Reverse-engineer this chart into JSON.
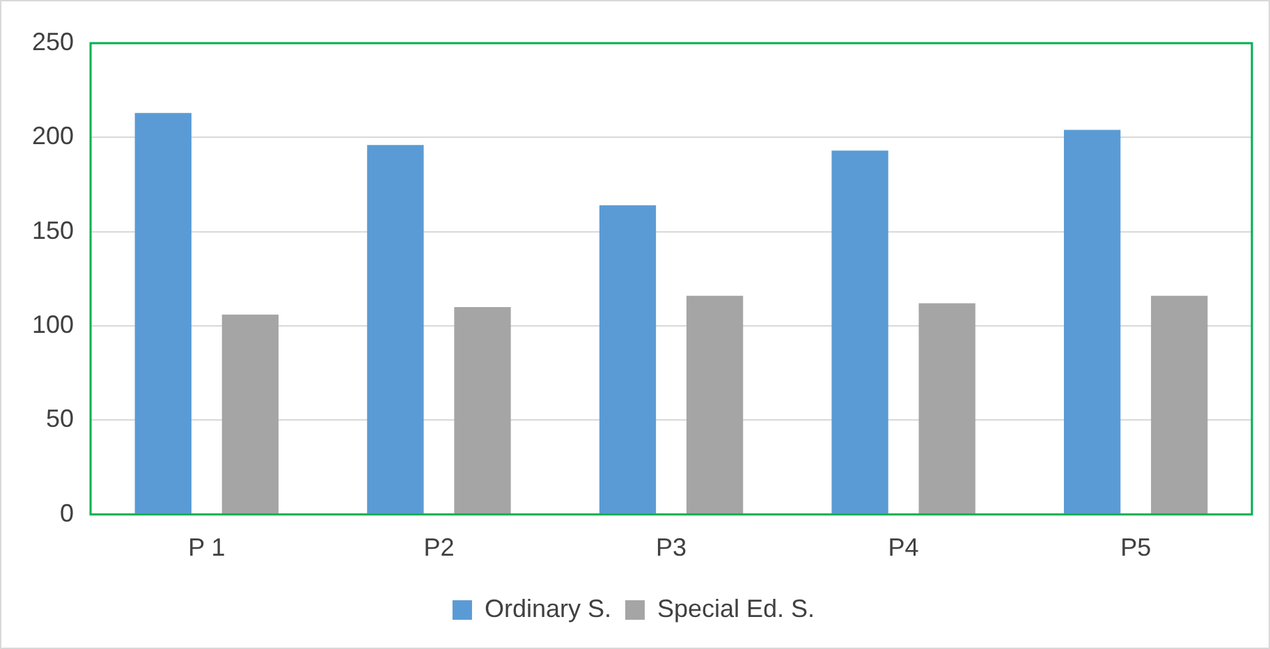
{
  "chart_data": {
    "type": "bar",
    "categories": [
      "P 1",
      "P2",
      "P3",
      "P4",
      "P5"
    ],
    "series": [
      {
        "name": "Ordinary S.",
        "color": "#5b9bd5",
        "values": [
          213,
          196,
          164,
          193,
          204
        ]
      },
      {
        "name": "Special Ed. S.",
        "color": "#a5a5a5",
        "values": [
          106,
          110,
          116,
          112,
          116
        ]
      }
    ],
    "ylim": [
      0,
      250
    ],
    "yticks": [
      0,
      50,
      100,
      150,
      200,
      250
    ],
    "grid": "y",
    "legend": "bottom"
  }
}
